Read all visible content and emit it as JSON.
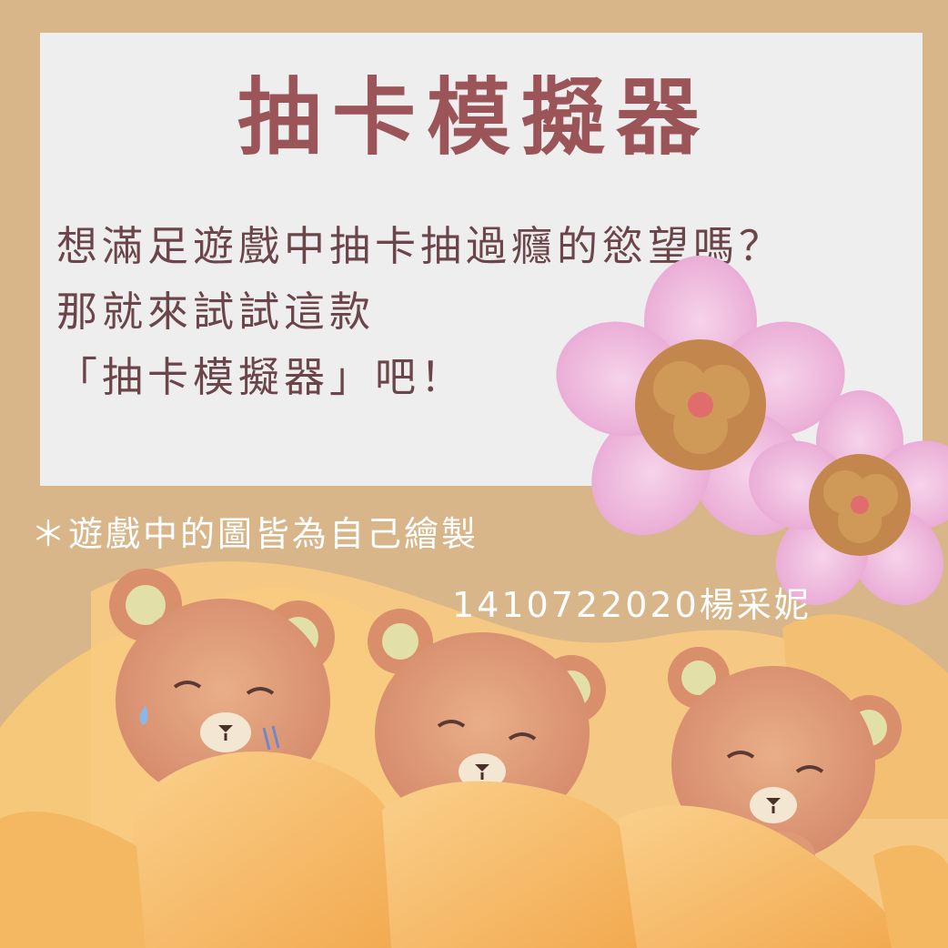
{
  "title": "抽卡模擬器",
  "intro": {
    "line1": "想滿足遊戲中抽卡抽過癮的慾望嗎？",
    "line2": "那就來試試這款",
    "line3": "「抽卡模擬器」吧！"
  },
  "note": "＊遊戲中的圖皆為自己繪製",
  "credit": "1410722020楊采妮",
  "colors": {
    "background": "#D8B68A",
    "panel": "#EEEEEE",
    "title": "#9B5558",
    "body_text": "#6B4549",
    "caption": "#FFFFFF",
    "bear": "#DD9A74",
    "blanket": "#F7BE6A",
    "flower": "#EFB8DC",
    "flower_center": "#C3874E"
  },
  "icons": [
    "flower-icon",
    "bear-illustration"
  ]
}
